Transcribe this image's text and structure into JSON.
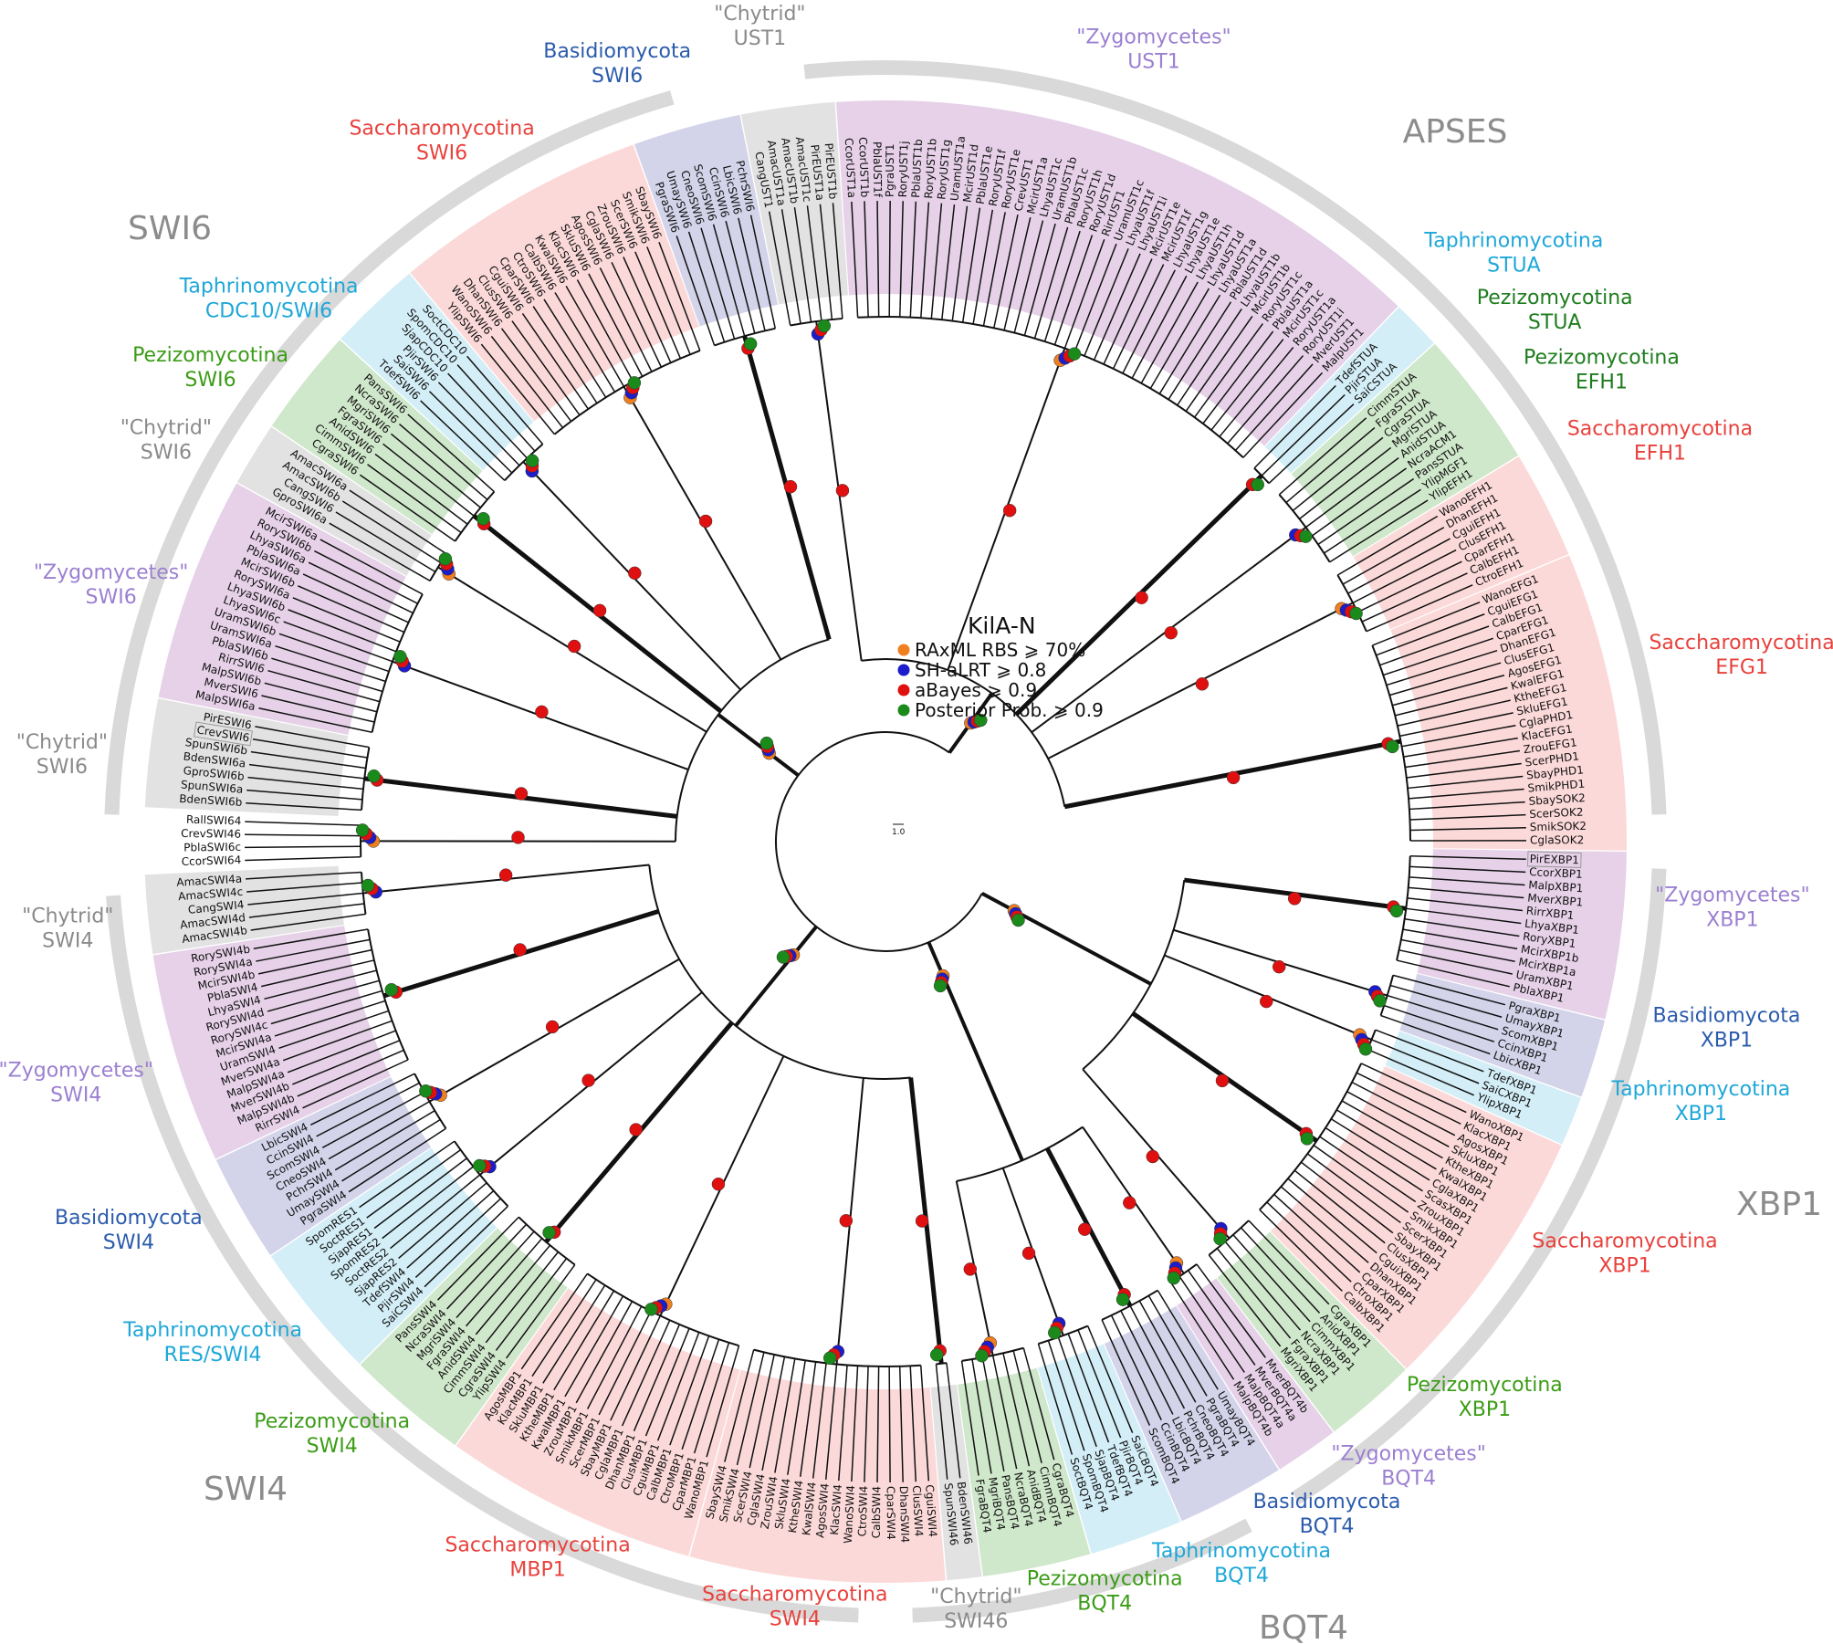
{
  "title": "KilA-N",
  "legend": [
    {
      "label": "RAxML RBS ⩾ 70%",
      "color": "#f07f20"
    },
    {
      "label": "SH-aLRT ⩾ 0.8",
      "color": "#1c1ccc"
    },
    {
      "label": "aBayes ⩾ 0.9",
      "color": "#e01010"
    },
    {
      "label": "Posterior Prob. ⩾ 0.9",
      "color": "#1a8a1a"
    }
  ],
  "scale_bar": "1.0",
  "superfamilies": [
    "SWI6",
    "APSES",
    "XBP1",
    "BQT4",
    "SWI4"
  ],
  "taxon_colors": {
    "sac": {
      "text": "#e8413c",
      "fill": "#fcd9d9"
    },
    "bas": {
      "text": "#2b5bad",
      "fill": "#d3d3ea"
    },
    "tap": {
      "text": "#1ea7d8",
      "fill": "#d3eef7"
    },
    "pez": {
      "text": "#3b9c16",
      "fill": "#cfe7ca"
    },
    "pezd": {
      "text": "#1e7d1e",
      "fill": "#cfe7ca"
    },
    "zyg": {
      "text": "#9b7fd1",
      "fill": "#e6d1e8"
    },
    "chy": {
      "text": "#8a8a8a",
      "fill": "#e2e2e2"
    }
  },
  "clade_labels": [
    {
      "taxon": "chy",
      "name": "\"Chytrid\"",
      "gene": "UST1"
    },
    {
      "taxon": "bas",
      "name": "Basidiomycota",
      "gene": "SWI6"
    },
    {
      "taxon": "zyg",
      "name": "\"Zygomycetes\"",
      "gene": "UST1"
    },
    {
      "taxon": "sac",
      "name": "Saccharomycotina",
      "gene": "SWI6"
    },
    {
      "taxon": "tap",
      "name": "Taphrinomycotina",
      "gene": "CDC10/SWI6"
    },
    {
      "taxon": "pez",
      "name": "Pezizomycotina",
      "gene": "SWI6"
    },
    {
      "taxon": "chy",
      "name": "\"Chytrid\"",
      "gene": "SWI6"
    },
    {
      "taxon": "zyg",
      "name": "\"Zygomycetes\"",
      "gene": "SWI6"
    },
    {
      "taxon": "chy",
      "name": "\"Chytrid\"",
      "gene": "SWI6"
    },
    {
      "taxon": "chy",
      "name": "\"Chytrid\"",
      "gene": "SWI4"
    },
    {
      "taxon": "zyg",
      "name": "\"Zygomycetes\"",
      "gene": "SWI4"
    },
    {
      "taxon": "bas",
      "name": "Basidiomycota",
      "gene": "SWI4"
    },
    {
      "taxon": "tap",
      "name": "Taphrinomycotina",
      "gene": "RES/SWI4"
    },
    {
      "taxon": "pez",
      "name": "Pezizomycotina",
      "gene": "SWI4"
    },
    {
      "taxon": "sac",
      "name": "Saccharomycotina",
      "gene": "MBP1"
    },
    {
      "taxon": "sac",
      "name": "Saccharomycotina",
      "gene": "SWI4"
    },
    {
      "taxon": "chy",
      "name": "\"Chytrid\"",
      "gene": "SWI46"
    },
    {
      "taxon": "pez",
      "name": "Pezizomycotina",
      "gene": "BQT4"
    },
    {
      "taxon": "tap",
      "name": "Taphrinomycotina",
      "gene": "BQT4"
    },
    {
      "taxon": "bas",
      "name": "Basidiomycota",
      "gene": "BQT4"
    },
    {
      "taxon": "zyg",
      "name": "\"Zygomycetes\"",
      "gene": "BQT4"
    },
    {
      "taxon": "pez",
      "name": "Pezizomycotina",
      "gene": "XBP1"
    },
    {
      "taxon": "sac",
      "name": "Saccharomycotina",
      "gene": "XBP1"
    },
    {
      "taxon": "tap",
      "name": "Taphrinomycotina",
      "gene": "XBP1"
    },
    {
      "taxon": "bas",
      "name": "Basidiomycota",
      "gene": "XBP1"
    },
    {
      "taxon": "zyg",
      "name": "\"Zygomycetes\"",
      "gene": "XBP1"
    },
    {
      "taxon": "sac",
      "name": "Saccharomycotina",
      "gene": "EFG1"
    },
    {
      "taxon": "sac",
      "name": "Saccharomycotina",
      "gene": "EFH1"
    },
    {
      "taxon": "pezd",
      "name": "Pezizomycotina",
      "gene": "EFH1"
    },
    {
      "taxon": "pezd",
      "name": "Pezizomycotina",
      "gene": "STUA"
    },
    {
      "taxon": "tap",
      "name": "Taphrinomycotina",
      "gene": "STUA"
    }
  ],
  "groups": [
    {
      "taxon": "zyg",
      "super": "XBP1",
      "leaves": [
        {
          "name": "PirEXBP1",
          "color": "#8a8a8a",
          "boxed": true
        },
        "CcorXBP1",
        "MalpXBP1",
        "MverXBP1",
        "RirrXBP1",
        "LhyaXBP1",
        "RoryXBP1",
        "McirXBP1b",
        "McirXBP1a",
        "UramXBP1",
        "PblaXBP1"
      ]
    },
    {
      "taxon": "bas",
      "super": "XBP1",
      "leaves": [
        "PgraXBP1",
        "UmayXBP1",
        "ScomXBP1",
        "CcinXBP1",
        "LbicXBP1"
      ]
    },
    {
      "taxon": "tap",
      "super": "XBP1",
      "leaves": [
        "TdefXBP1",
        "SaiCXBP1",
        "YlipXBP1"
      ]
    },
    {
      "taxon": "sac",
      "super": "XBP1",
      "leaves": [
        "WanoXBP1",
        "KlacXBP1",
        "AgosXBP1",
        "SkluXBP1",
        "KtheXBP1",
        "KwalXBP1",
        "CglaXBP1",
        "ScasXBP1",
        "ZrouXBP1",
        "SmikXBP1",
        "ScerXBP1",
        "SbayXBP1",
        "ClusXBP1",
        "CguiXBP1",
        "DhanXBP1",
        "CparXBP1",
        "CtroXBP1",
        "CalbXBP1"
      ]
    },
    {
      "taxon": "pez",
      "super": "XBP1",
      "leaves": [
        "CgraXBP1",
        "AnidXBP1",
        "CimmXBP1",
        "NcraXBP1",
        "FgraXBP1",
        "MgriXBP1"
      ]
    },
    {
      "taxon": "zyg",
      "super": "BQT4",
      "leaves": [
        "MverBQT4b",
        "MverBQT4a",
        "MalpBQT4a",
        "MalpBQT4b"
      ]
    },
    {
      "taxon": "bas",
      "super": "BQT4",
      "leaves": [
        "UmayBQT4",
        "PgraBQT4",
        "CneoBQT4",
        "PchrBQT4",
        "LbicBQT4",
        "CcinBQT4",
        "ScomBQT4"
      ]
    },
    {
      "taxon": "tap",
      "super": "BQT4",
      "leaves": [
        "SaiCBQT4",
        "PjirBQT4",
        "TdefBQT4",
        "SjapBQT4",
        "SpomBQT4",
        "SoctBQT4"
      ]
    },
    {
      "taxon": "pez",
      "super": "BQT4",
      "leaves": [
        "CgraBQT4",
        "CimmBQT4",
        "AnidBQT4",
        "NcraBQT4",
        "PansBQT4",
        "MgriBQT4",
        "FgraBQT4"
      ]
    },
    {
      "taxon": "chy",
      "super": "SWI4",
      "leaves": [
        "BdenSWI46",
        "SpunSWI46"
      ]
    },
    {
      "taxon": "sac",
      "super": "SWI4",
      "leaves": [
        "CguiSWI4",
        "ClusSWI4",
        "DhanSWI4",
        "CparSWI4",
        "CalbSWI4",
        "CtroSWI4",
        "WanoSWI4",
        "KlacSWI4",
        "AgosSWI4",
        "KwalSWI4",
        "KtheSWI4",
        "SkluSWI4",
        "ZrouSWI4",
        "CglaSWI4",
        "ScerSWI4",
        "SmikSWI4",
        "SbaySWI4"
      ]
    },
    {
      "taxon": "sac",
      "super": "SWI4",
      "leaves": [
        "WanoMBP1",
        "CparMBP1",
        "CtroMBP1",
        "CalbMBP1",
        "CguiMBP1",
        "ClusMBP1",
        "DhanMBP1",
        "CglaMBP1",
        "SbayMBP1",
        "ScerMBP1",
        "SmikMBP1",
        "ZrouMBP1",
        "KwalMBP1",
        "KtheMBP1",
        "SkluMBP1",
        "KlacMBP1",
        "AgosMBP1"
      ]
    },
    {
      "taxon": "pez",
      "super": "SWI4",
      "leaves": [
        "YlipSWI4",
        "CgraSWI4",
        "CimmSWI4",
        "AnidSWI4",
        "FgraSWI4",
        "MgriSWI4",
        "NcraSWI4",
        "PansSWI4"
      ]
    },
    {
      "taxon": "tap",
      "super": "SWI4",
      "leaves": [
        "SaiCSWI4",
        "PjirSWI4",
        "TdefSWI4",
        "SjapRES2",
        "SoctRES2",
        "SpomRES2",
        "SjapRES1",
        "SoctRES1",
        "SpomRES1"
      ]
    },
    {
      "taxon": "bas",
      "super": "SWI4",
      "leaves": [
        "PgraSWI4",
        "UmaySWI4",
        "PchrSWI4",
        "CneoSWI4",
        "ScomSWI4",
        "CcinSWI4",
        "LbicSWI4"
      ]
    },
    {
      "taxon": "zyg",
      "super": "SWI4",
      "leaves": [
        "RirrSWI4",
        "MalpSWI4b",
        "MverSWI4b",
        "MalpSWI4a",
        "MverSWI4a",
        "UramSWI4",
        "McirSWI4a",
        "RorySWI4c",
        "RorySWI4d",
        "LhyaSWI4",
        "PblaSWI4",
        "McirSWI4b",
        "RorySWI4a",
        "RorySWI4b"
      ]
    },
    {
      "taxon": "chy",
      "super": "SWI4",
      "leaves": [
        "AmacSWI4b",
        "AmacSWI4d",
        "CangSWI4",
        "AmacSWI4c",
        "AmacSWI4a"
      ]
    },
    {
      "taxon": "none",
      "super": "SWI6",
      "leaves": [
        {
          "name": "CcorSWI64",
          "color": "#9b7fd1"
        },
        {
          "name": "PblaSWI6c",
          "color": "#9b7fd1"
        },
        {
          "name": "CrevSWI46",
          "color": "#9b7fd1"
        },
        {
          "name": "RallSWI64",
          "color": "#8a8a8a"
        }
      ]
    },
    {
      "taxon": "chy",
      "super": "SWI6",
      "leaves": [
        "BdenSWI6b",
        "SpunSWI6a",
        "GproSWI6b",
        "BdenSWI6a",
        "SpunSWI6b",
        {
          "name": "CrevSWI6",
          "color": "#9b7fd1",
          "boxed": true
        },
        "PirESWI6"
      ]
    },
    {
      "taxon": "zyg",
      "super": "SWI6",
      "leaves": [
        "MalpSWI6a",
        "MverSWI6",
        "MalpSWI6b",
        "RirrSWI6",
        "PblaSWI6b",
        "UramSWI6a",
        "UramSWI6b",
        "LhyaSWI6c",
        "LhyaSWI6b",
        "RorySWI6a",
        "McirSWI6b",
        "PblaSWI6a",
        "LhyaSWI6a",
        "RorySWI6b",
        "McirSWI6a"
      ]
    },
    {
      "taxon": "chy",
      "super": "SWI6",
      "leaves": [
        "GproSWI6a",
        "CangSWI6",
        "AmacSWI6b",
        "AmacSWI6a"
      ]
    },
    {
      "taxon": "pez",
      "super": "SWI6",
      "leaves": [
        "CgraSWI6",
        "CimmSWI6",
        "AnidSWI6",
        "FgraSWI6",
        "MgriSWI6",
        "NcraSWI6",
        "PansSWI6"
      ]
    },
    {
      "taxon": "tap",
      "super": "SWI6",
      "leaves": [
        "TdefSWI6",
        "SaiSWI6",
        "PjirSWI6",
        "SjapCDC10",
        "SpomCDC10",
        "SoctCDC10"
      ]
    },
    {
      "taxon": "sac",
      "super": "SWI6",
      "leaves": [
        {
          "name": "YlipSWI6",
          "color": "#3b9c16"
        },
        "WanoSWI6",
        "DhanSWI6",
        "ClusSWI6",
        "CguiSWI6",
        "CparSWI6",
        "CtroSWI6",
        "CalbSWI6",
        "KwalSWI6",
        "KlacSWI6",
        "SkluSWI6",
        "AgosSWI6",
        "CglaSWI6",
        "ZrouSWI6",
        "ScerSWI6",
        "SmikSWI6",
        "SbaySWI6"
      ]
    },
    {
      "taxon": "bas",
      "super": "SWI6",
      "leaves": [
        "PgraSWI6",
        "UmaySWI6",
        "CneoSWI6",
        "ScomSWI6",
        "CcinSWI6",
        "LbicSWI6",
        "PchrSWI6"
      ]
    },
    {
      "taxon": "chy",
      "super": "APSES",
      "leaves": [
        "CangUST1",
        "AmacUST1a",
        "AmacUST1b",
        "AmacUST1c",
        "PirEUST1a",
        "PirEUST1b"
      ]
    },
    {
      "taxon": "zyg",
      "super": "APSES",
      "leaves": [
        "CcorUST1a",
        "CcorUST1b",
        "PblaUST1f",
        "PgraUST1",
        "RoryUST1j",
        "PblaUST1b",
        "RoryUST1b",
        "RoryUST1g",
        "UramUST1a",
        "McirUST1d",
        "PblaUST1e",
        "RoryUST1f",
        "RoryUST1e",
        "CrevUST1",
        "McirUST1a",
        "LhyaUST1c",
        "UramUST1b",
        "PblaUST1c",
        "RoryUST1h",
        "RoryUST1d",
        "RirrUST1",
        "UramUST1c",
        "LhyaUST1f",
        "LhyaUST1i",
        "McirUST1e",
        "McirUST1f",
        "LhyaUST1g",
        "LhyaUST1e",
        "LhyaUST1h",
        "LhyaUST1d",
        "LhyaUST1a",
        "PblaUST1d",
        "LhyaUST1b",
        "McirUST1b",
        "RoryUST1c",
        "PblaUST1a",
        "McirUST1c",
        "RoryUST1a",
        "RoryUST1i",
        "MverUST1",
        "MalpUST1"
      ]
    },
    {
      "taxon": "tap",
      "super": "APSES",
      "leaves": [
        "TdefSTUA",
        "PjirSTUA",
        "SaiCSTUA"
      ]
    },
    {
      "taxon": "pez",
      "super": "APSES",
      "leaves": [
        "CimmSTUA",
        "FgraSTUA",
        "CgraSTUA",
        "MgriSTUA",
        "AnidSTUA",
        "NcraACM1",
        "PansSTUA",
        "YlipMGF1",
        "YlipEFH1"
      ]
    },
    {
      "taxon": "sac",
      "super": "APSES",
      "leaves": [
        "WanoEFH1",
        "DhanEFH1",
        "CguiEFH1",
        "ClusEFH1",
        "CparEFH1",
        "CalbEFH1",
        "CtroEFH1"
      ]
    },
    {
      "taxon": "sac",
      "super": "APSES",
      "leaves": [
        "WanoEFG1",
        "CguiEFG1",
        "CalbEFG1",
        "CparEFG1",
        "DhanEFG1",
        "ClusEFG1",
        "AgosEFG1",
        "KwalEFG1",
        "KtheEFG1",
        "SkluEFG1",
        "CglaPHD1",
        "KlacEFG1",
        "ZrouEFG1",
        "ScerPHD1",
        "SbayPHD1",
        "SmikPHD1",
        "SbaySOK2",
        "ScerSOK2",
        "SmikSOK2",
        "CglaSOK2"
      ]
    }
  ]
}
